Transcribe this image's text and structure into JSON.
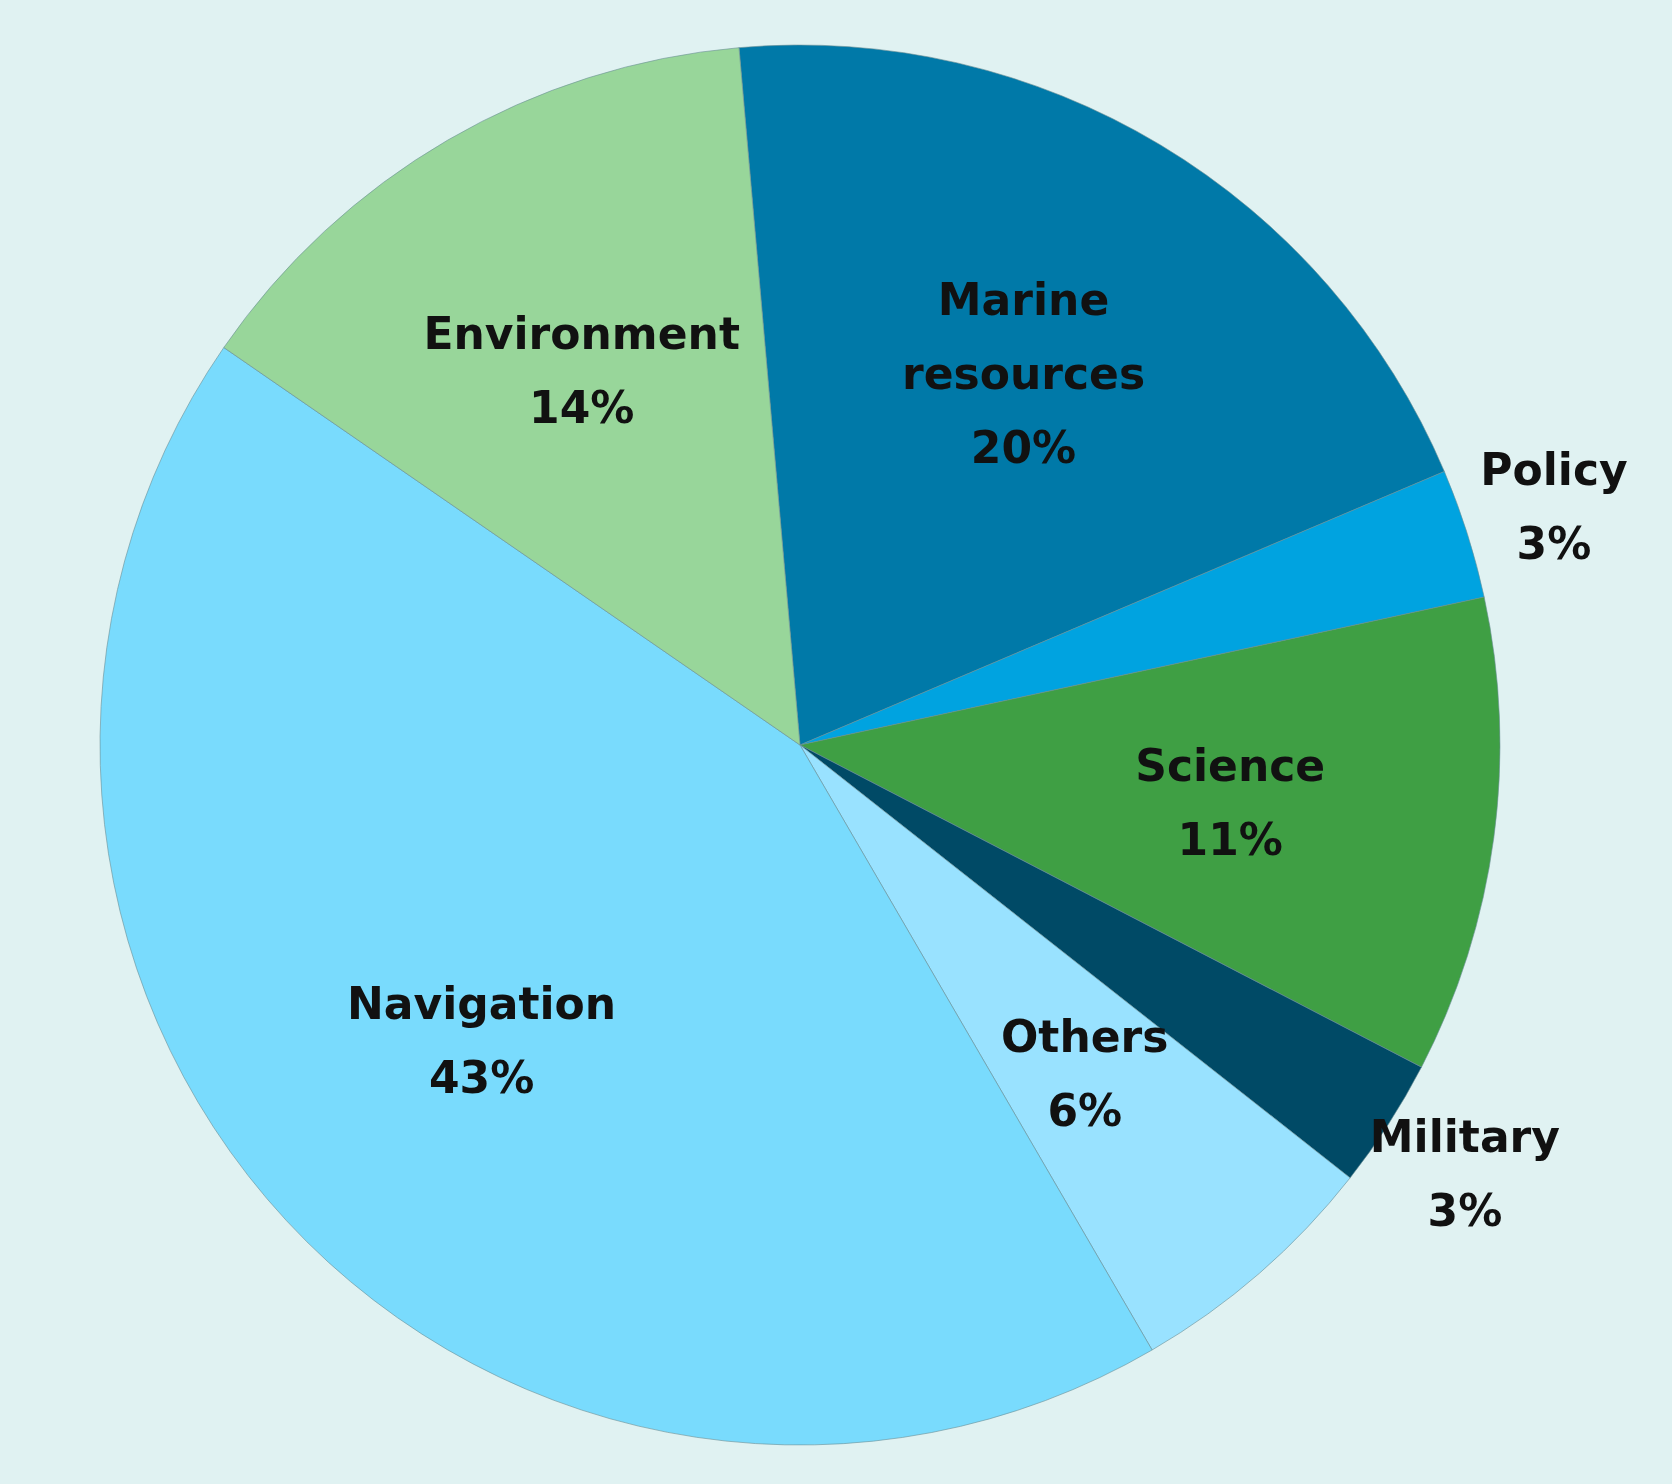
{
  "chart_data": {
    "type": "pie",
    "categories": [
      "Marine resources",
      "Policy",
      "Science",
      "Military",
      "Others",
      "Navigation",
      "Environment"
    ],
    "values": [
      20,
      3,
      11,
      3,
      6,
      43,
      14
    ],
    "colors": [
      "#0079a8",
      "#00a3e0",
      "#3f9f44",
      "#004a66",
      "#99e2ff",
      "#79dbfd",
      "#98d69a"
    ],
    "value_labels": [
      "20%",
      "3%",
      "11%",
      "3%",
      "6%",
      "43%",
      "14%"
    ]
  }
}
